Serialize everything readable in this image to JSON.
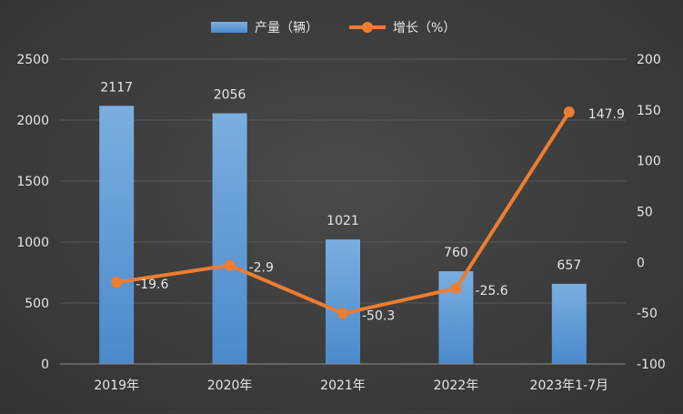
{
  "chart_data": {
    "type": "bar-line-combo",
    "categories": [
      "2019年",
      "2020年",
      "2021年",
      "2022年",
      "2023年1-7月"
    ],
    "series": [
      {
        "name": "产量（辆）",
        "type": "bar",
        "axis": "left",
        "values": [
          2117,
          2056,
          1021,
          760,
          657
        ],
        "color": "#5b9bd5"
      },
      {
        "name": "增长（%）",
        "type": "line",
        "axis": "right",
        "values": [
          -19.6,
          -2.9,
          -50.3,
          -25.6,
          147.9
        ],
        "color": "#ed7d31"
      }
    ],
    "left_axis": {
      "min": 0,
      "max": 2500,
      "ticks": [
        0,
        500,
        1000,
        1500,
        2000,
        2500
      ]
    },
    "right_axis": {
      "min": -100,
      "max": 200,
      "ticks": [
        -100,
        -50,
        0,
        50,
        100,
        150,
        200
      ]
    },
    "legend_position": "top-center",
    "grid": true,
    "colors": {
      "text": "#e6e6e6",
      "grid": "#595959",
      "axis_line": "#8c8c8c"
    }
  }
}
